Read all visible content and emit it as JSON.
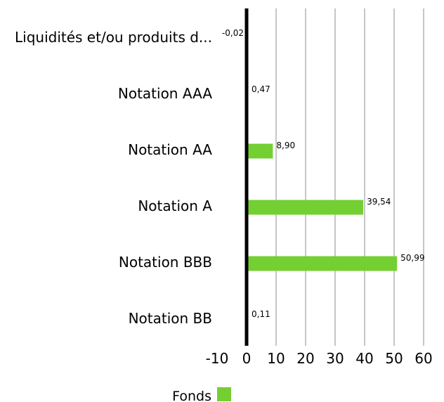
{
  "chart_data": {
    "type": "bar",
    "orientation": "horizontal",
    "categories": [
      "Liquidités et/ou produits d...",
      "Notation AAA",
      "Notation AA",
      "Notation A",
      "Notation BBB",
      "Notation BB"
    ],
    "series": [
      {
        "name": "Fonds",
        "color": "#74cf33",
        "values": [
          -0.02,
          0.47,
          8.9,
          39.54,
          50.99,
          0.11
        ],
        "labels": [
          "-0,02",
          "0,47",
          "8,90",
          "39,54",
          "50,99",
          "0,11"
        ]
      }
    ],
    "xlim": [
      -10,
      60
    ],
    "xticks": [
      -10,
      0,
      10,
      20,
      30,
      40,
      50,
      60
    ],
    "grid": true,
    "legend_position": "bottom-center"
  }
}
